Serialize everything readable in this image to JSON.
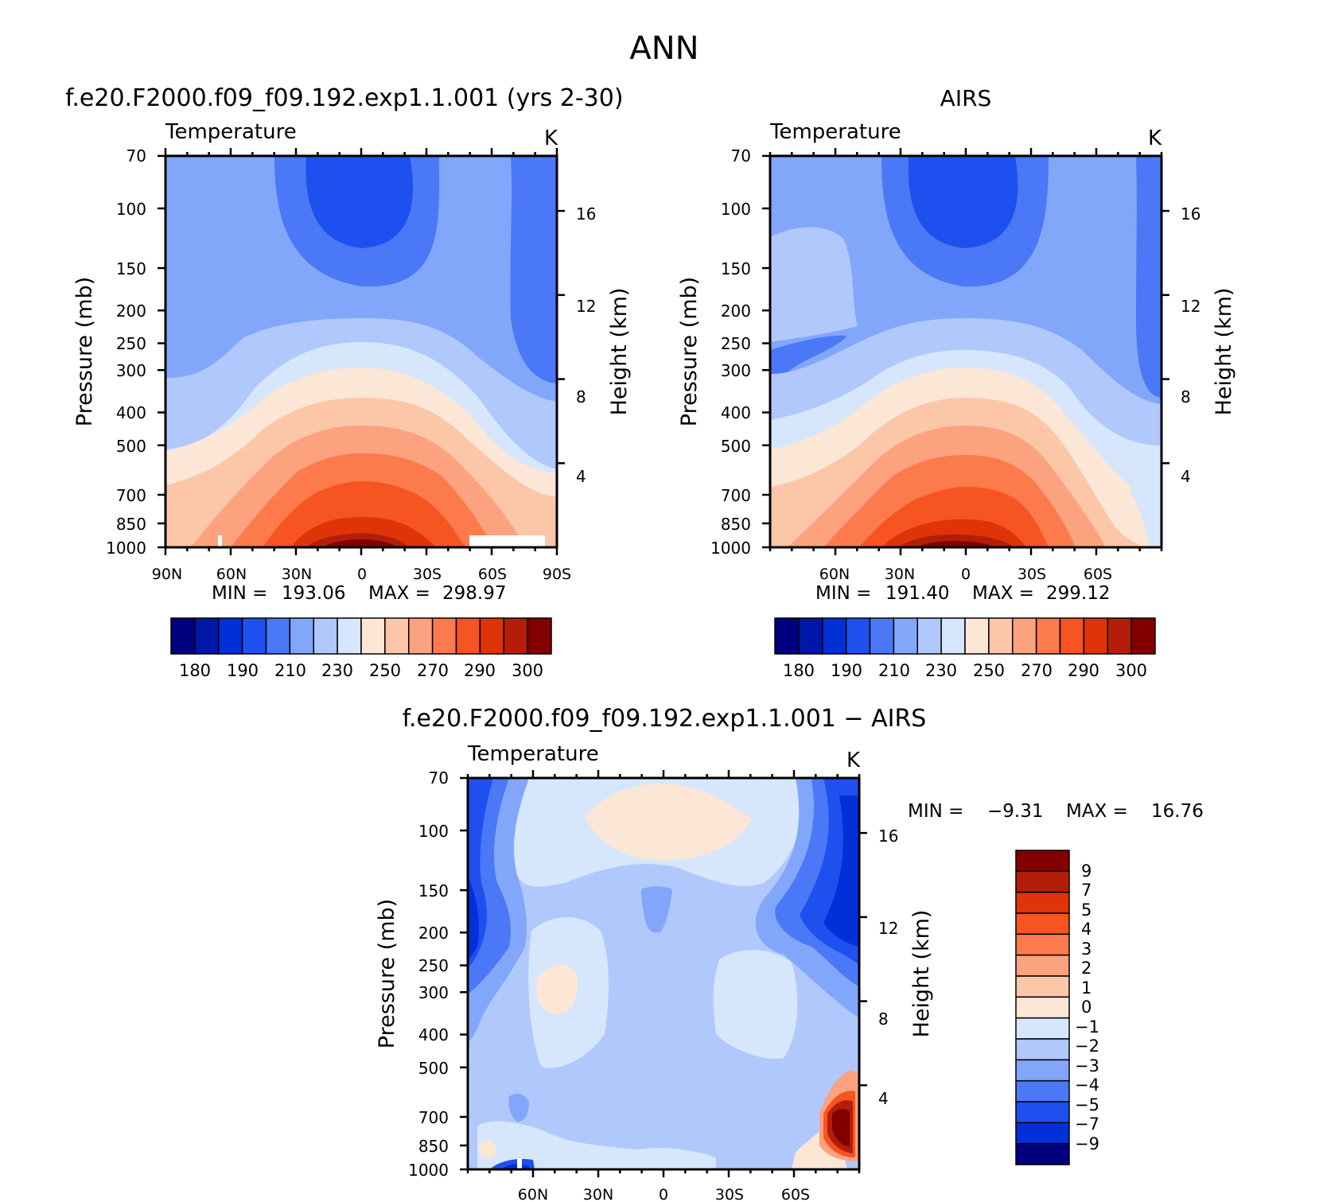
{
  "title": "ANN",
  "colors": {
    "abs": [
      "#000080",
      "#0016a8",
      "#0230d8",
      "#1e50f0",
      "#4a78f6",
      "#82a6fa",
      "#b0c8fc",
      "#d6e6fc",
      "#fce6d6",
      "#fcc6a8",
      "#fca27e",
      "#fc7a4c",
      "#f65420",
      "#de3408",
      "#b41e08",
      "#820000"
    ],
    "diff": [
      "#000080",
      "#0230d8",
      "#1e50f0",
      "#4a78f6",
      "#82a6fa",
      "#b0c8fc",
      "#d6e6fc",
      "#fce6d6",
      "#fcc6a8",
      "#fca27e",
      "#fc7a4c",
      "#f65420",
      "#de3408",
      "#b41e08",
      "#820000"
    ]
  },
  "chart_data": [
    {
      "type": "heatmap",
      "title": "f.e20.F2000.f09_f09.192.exp1.1.001 (yrs 2-30)",
      "subtitle": "Temperature",
      "units": "K",
      "xlabel": "",
      "ylabel": "Pressure (mb)",
      "ylabel_right": "Height (km)",
      "x_ticks": [
        "90N",
        "60N",
        "30N",
        "0",
        "30S",
        "60S",
        "90S"
      ],
      "y_ticks": [
        "70",
        "100",
        "150",
        "200",
        "250",
        "300",
        "400",
        "500",
        "700",
        "850",
        "1000"
      ],
      "y_ticks_right": [
        "16",
        "12",
        "8",
        "4"
      ],
      "stats": {
        "min_label": "MIN =",
        "min": "193.06",
        "max_label": "MAX =",
        "max": "298.97"
      },
      "colorbar_labels": [
        "180",
        "190",
        "210",
        "230",
        "250",
        "270",
        "290",
        "300"
      ]
    },
    {
      "type": "heatmap",
      "title": "AIRS",
      "subtitle": "Temperature",
      "units": "K",
      "xlabel": "",
      "ylabel": "Pressure (mb)",
      "ylabel_right": "Height (km)",
      "x_ticks": [
        "60N",
        "30N",
        "0",
        "30S",
        "60S"
      ],
      "y_ticks": [
        "70",
        "100",
        "150",
        "200",
        "250",
        "300",
        "400",
        "500",
        "700",
        "850",
        "1000"
      ],
      "y_ticks_right": [
        "16",
        "12",
        "8",
        "4"
      ],
      "stats": {
        "min_label": "MIN =",
        "min": "191.40",
        "max_label": "MAX =",
        "max": "299.12"
      },
      "colorbar_labels": [
        "180",
        "190",
        "210",
        "230",
        "250",
        "270",
        "290",
        "300"
      ]
    },
    {
      "type": "heatmap",
      "title": "f.e20.F2000.f09_f09.192.exp1.1.001 − AIRS",
      "subtitle": "Temperature",
      "units": "K",
      "xlabel": "",
      "ylabel": "Pressure (mb)",
      "ylabel_right": "Height (km)",
      "x_ticks": [
        "60N",
        "30N",
        "0",
        "30S",
        "60S"
      ],
      "y_ticks": [
        "70",
        "100",
        "150",
        "200",
        "250",
        "300",
        "400",
        "500",
        "700",
        "850",
        "1000"
      ],
      "y_ticks_right": [
        "16",
        "12",
        "8",
        "4"
      ],
      "stats": {
        "min_label": "MIN =",
        "min": "−9.31",
        "max_label": "MAX =",
        "max": "16.76"
      },
      "colorbar_labels": [
        "9",
        "7",
        "5",
        "4",
        "3",
        "2",
        "1",
        "0",
        "−1",
        "−2",
        "−3",
        "−4",
        "−5",
        "−7",
        "−9"
      ]
    }
  ]
}
